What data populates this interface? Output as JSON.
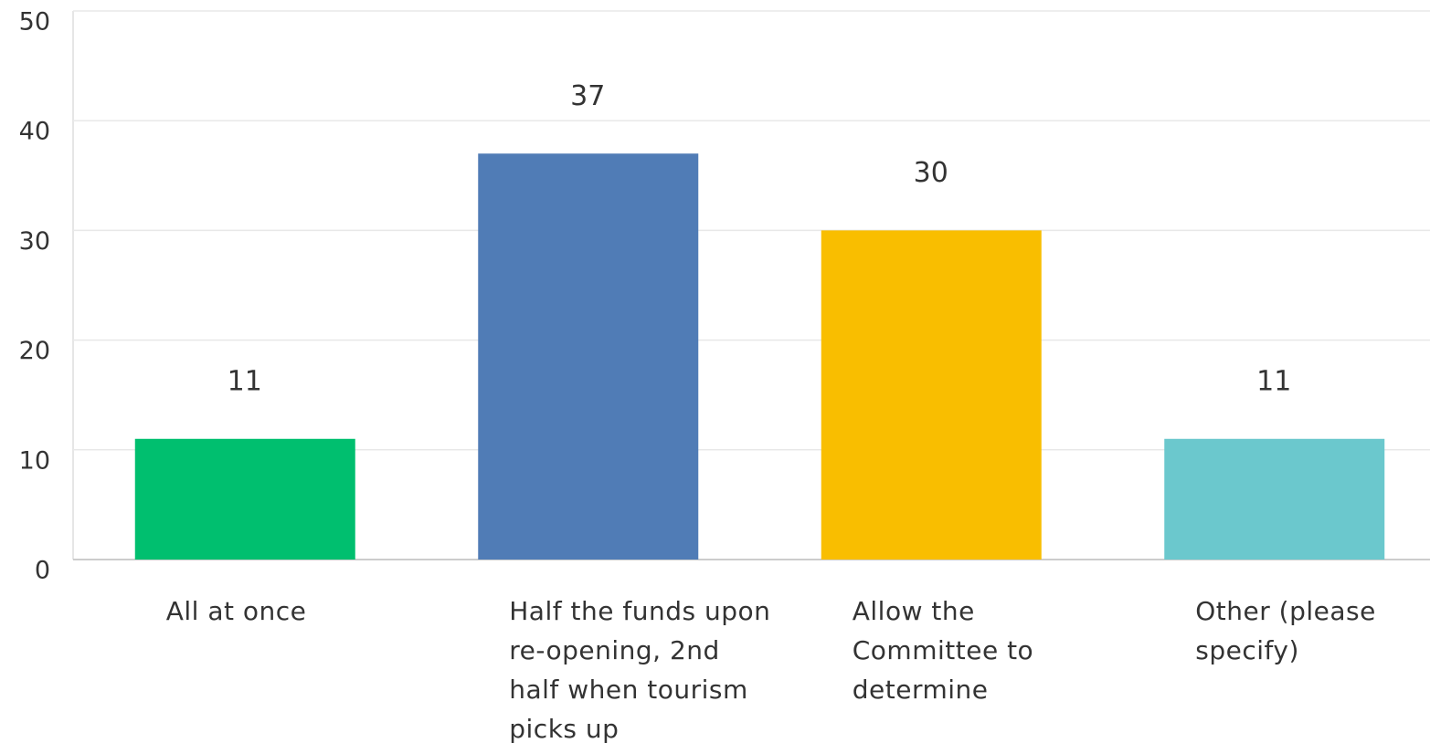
{
  "chart_data": {
    "type": "bar",
    "categories": [
      "All at once",
      "Half the funds upon re-opening, 2nd half when tourism picks up",
      "Allow the Committee to determine",
      "Other (please specify)"
    ],
    "values": [
      11,
      37,
      30,
      11
    ],
    "colors": [
      "#00bf6f",
      "#507cb6",
      "#f9be00",
      "#6bc8cd"
    ],
    "ylim": [
      0,
      50
    ],
    "yticks": [
      0,
      10,
      20,
      30,
      40,
      50
    ],
    "grid": true
  }
}
